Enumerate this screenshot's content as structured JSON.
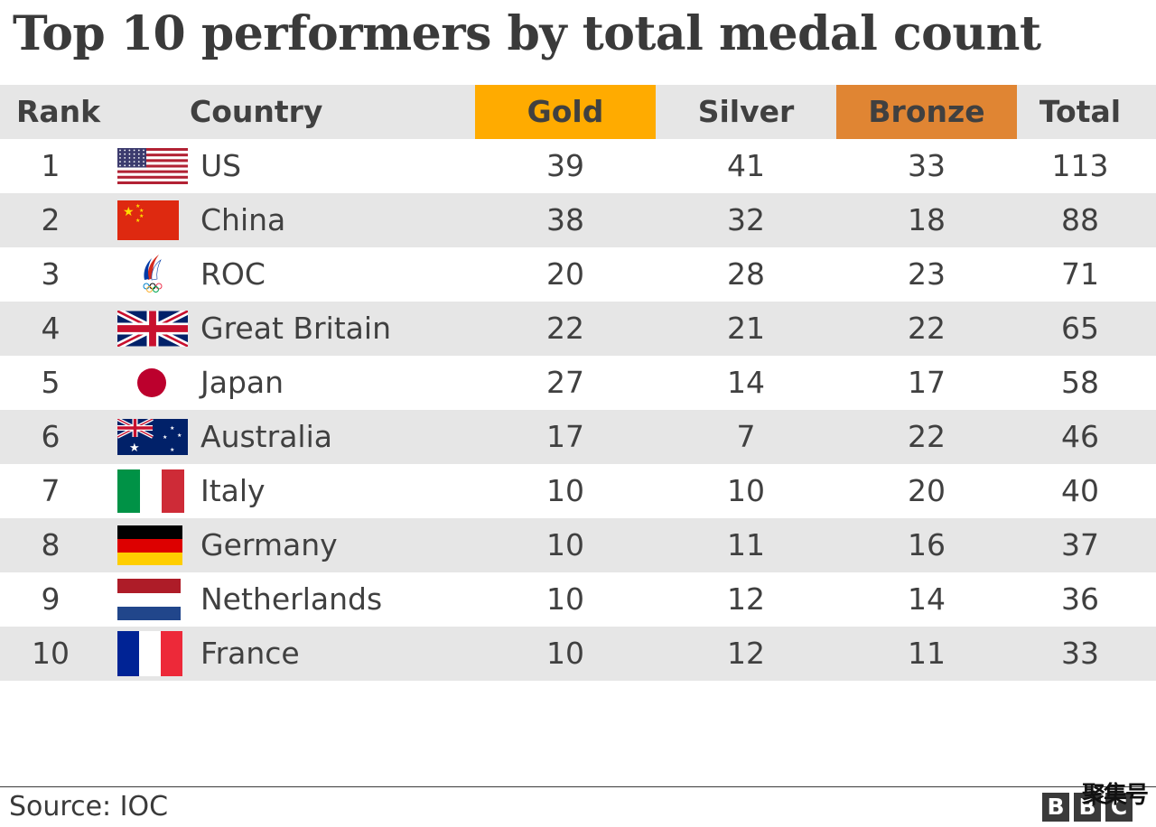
{
  "title": "Top 10 performers by total medal count",
  "headers": {
    "rank": "Rank",
    "country": "Country",
    "gold": "Gold",
    "silver": "Silver",
    "bronze": "Bronze",
    "total": "Total"
  },
  "colors": {
    "gold": "#ffab00",
    "bronze": "#e08533",
    "stripe": "#e6e6e6"
  },
  "chart_data": {
    "type": "table",
    "title": "Top 10 performers by total medal count",
    "columns": [
      "Rank",
      "Country",
      "Gold",
      "Silver",
      "Bronze",
      "Total"
    ],
    "rows": [
      {
        "rank": "1",
        "country": "US",
        "gold": "39",
        "silver": "41",
        "bronze": "33",
        "total": "113",
        "flag": "us-flag-icon"
      },
      {
        "rank": "2",
        "country": "China",
        "gold": "38",
        "silver": "32",
        "bronze": "18",
        "total": "88",
        "flag": "china-flag-icon"
      },
      {
        "rank": "3",
        "country": "ROC",
        "gold": "20",
        "silver": "28",
        "bronze": "23",
        "total": "71",
        "flag": "roc-emblem-icon"
      },
      {
        "rank": "4",
        "country": "Great Britain",
        "gold": "22",
        "silver": "21",
        "bronze": "22",
        "total": "65",
        "flag": "uk-flag-icon"
      },
      {
        "rank": "5",
        "country": "Japan",
        "gold": "27",
        "silver": "14",
        "bronze": "17",
        "total": "58",
        "flag": "japan-flag-icon"
      },
      {
        "rank": "6",
        "country": "Australia",
        "gold": "17",
        "silver": "7",
        "bronze": "22",
        "total": "46",
        "flag": "australia-flag-icon"
      },
      {
        "rank": "7",
        "country": "Italy",
        "gold": "10",
        "silver": "10",
        "bronze": "20",
        "total": "40",
        "flag": "italy-flag-icon"
      },
      {
        "rank": "8",
        "country": "Germany",
        "gold": "10",
        "silver": "11",
        "bronze": "16",
        "total": "37",
        "flag": "germany-flag-icon"
      },
      {
        "rank": "9",
        "country": "Netherlands",
        "gold": "10",
        "silver": "12",
        "bronze": "14",
        "total": "36",
        "flag": "netherlands-flag-icon"
      },
      {
        "rank": "10",
        "country": "France",
        "gold": "10",
        "silver": "12",
        "bronze": "11",
        "total": "33",
        "flag": "france-flag-icon"
      }
    ]
  },
  "footer": {
    "source": "Source: IOC",
    "logo": [
      "B",
      "B",
      "C"
    ],
    "watermark": "聚集号"
  }
}
